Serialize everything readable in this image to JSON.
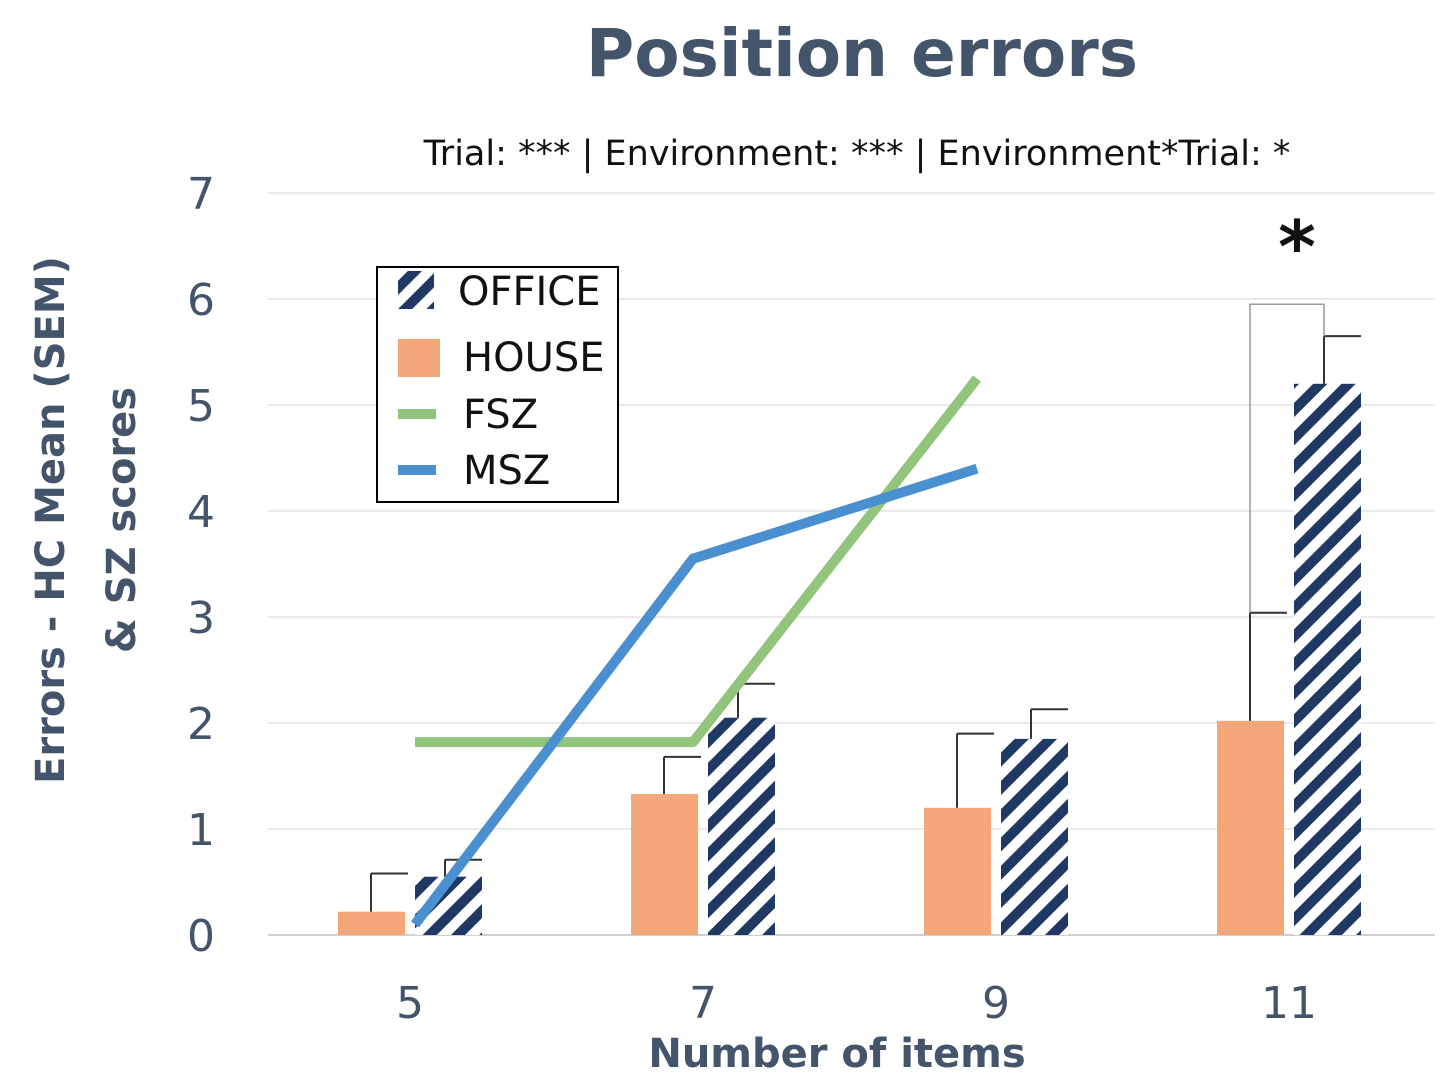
{
  "chart_data": {
    "type": "bar",
    "title": "Position errors",
    "subtitle": "Trial: *** | Environment: *** | Environment*Trial: *",
    "xlabel": "Number of items",
    "ylabel_line1": "Errors - HC Mean (SEM)",
    "ylabel_line2": "& SZ scores",
    "categories": [
      "5",
      "7",
      "9",
      "11"
    ],
    "ylim": [
      0,
      7
    ],
    "yticks": [
      "0",
      "1",
      "2",
      "3",
      "4",
      "5",
      "6",
      "7"
    ],
    "grid": true,
    "legend_position": "top-left",
    "bar_series": [
      {
        "name": "OFFICE",
        "values": [
          0.55,
          2.05,
          1.85,
          5.2
        ],
        "errors": [
          0.16,
          0.32,
          0.28,
          0.45
        ],
        "color": "#1f3864",
        "pattern": "hatched"
      },
      {
        "name": "HOUSE",
        "values": [
          0.22,
          1.33,
          1.2,
          2.02
        ],
        "errors": [
          0.36,
          0.35,
          0.7,
          1.02
        ],
        "color": "#f4a87a",
        "pattern": "solid"
      }
    ],
    "line_series": [
      {
        "name": "FSZ",
        "x": [
          "5",
          "7",
          "9"
        ],
        "values": [
          1.82,
          1.82,
          5.25
        ],
        "color": "#92c47c"
      },
      {
        "name": "MSZ",
        "x": [
          "5",
          "7",
          "9"
        ],
        "values": [
          0.1,
          3.55,
          4.4
        ],
        "color": "#4a8fd0"
      }
    ],
    "annotation": {
      "label": "*",
      "category": "11"
    }
  }
}
